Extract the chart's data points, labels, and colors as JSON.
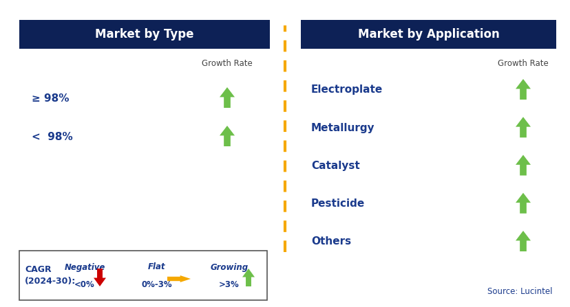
{
  "left_title": "Market by Type",
  "right_title": "Market by Application",
  "left_items": [
    "≥ 98%",
    "<  98%"
  ],
  "right_items": [
    "Electroplate",
    "Metallurgy",
    "Catalyst",
    "Pesticide",
    "Others"
  ],
  "header_bg_color": "#0d2156",
  "header_text_color": "#ffffff",
  "item_text_color": "#1a3a8c",
  "growth_rate_label": "Growth Rate",
  "growth_rate_color": "#444444",
  "arrow_up_color": "#6dbf4a",
  "arrow_flat_color": "#f5a800",
  "arrow_down_color": "#cc0000",
  "dashed_line_color": "#f5a800",
  "legend_border_color": "#555555",
  "legend_cagr_text": "CAGR\n(2024-30):",
  "legend_negative_label": "Negative",
  "legend_negative_sub": "<0%",
  "legend_flat_label": "Flat",
  "legend_flat_sub": "0%-3%",
  "legend_growing_label": "Growing",
  "legend_growing_sub": ">3%",
  "source_text": "Source: Lucintel",
  "background_color": "#ffffff"
}
